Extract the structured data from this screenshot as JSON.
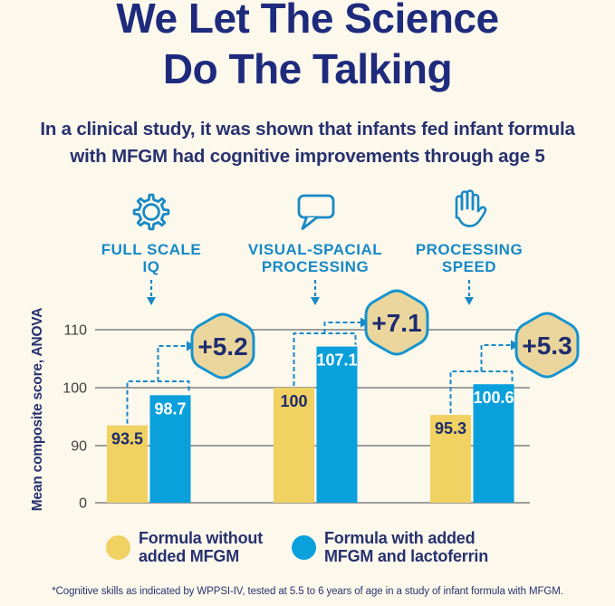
{
  "page": {
    "background": "#FCF8EC"
  },
  "title": {
    "text": "We Let The Science\nDo The Talking"
  },
  "subtitle": {
    "text": "In a clinical study, it was shown that infants fed infant formula\nwith MFGM had cognitive improvements through age 5"
  },
  "skills": [
    {
      "icon": "gear-icon",
      "label": "FULL SCALE\nIQ"
    },
    {
      "icon": "speech-bubble-icon",
      "label": "VISUAL-SPACIAL\nPROCESSING"
    },
    {
      "icon": "hand-icon",
      "label": "PROCESSING\nSPEED"
    }
  ],
  "chart_data": {
    "type": "bar",
    "ylabel": "Mean composite score, ANOVA",
    "yticks": [
      0,
      90,
      100,
      110
    ],
    "ylim": [
      0,
      113
    ],
    "axis_break": true,
    "grid": true,
    "legend_position": "bottom",
    "categories": [
      "Full Scale IQ",
      "Visual-Spacial Processing",
      "Processing Speed"
    ],
    "series": [
      {
        "name": "Formula without added MFGM",
        "color": "#F0D161",
        "values": [
          93.5,
          100,
          95.3
        ]
      },
      {
        "name": "Formula with added MFGM and lactoferrin",
        "color": "#09A0DC",
        "values": [
          98.7,
          107.1,
          100.6
        ]
      }
    ],
    "differences": [
      "+5.2",
      "+7.1",
      "+5.3"
    ]
  },
  "legend": [
    {
      "label": "Formula without\nadded MFGM",
      "color": "#F0D161"
    },
    {
      "label": "Formula with added\nMFGM and lactoferrin",
      "color": "#09A0DC"
    }
  ],
  "footnote": "*Cognitive skills as indicated by WPPSI-IV, tested at 5.5 to 6 years of age in a study of infant formula with MFGM.",
  "colors": {
    "background": "#FCF8EC",
    "title_navy": "#1E2B7D",
    "text_navy": "#27316F",
    "skill_blue": "#1789C6",
    "bar_value_navy": "#1E2B6E",
    "badge_fill": "#EAD69D",
    "badge_stroke": "#1493CE",
    "gridline_gray": "#9E9E9E",
    "tick_gray": "#3F3F3F"
  }
}
